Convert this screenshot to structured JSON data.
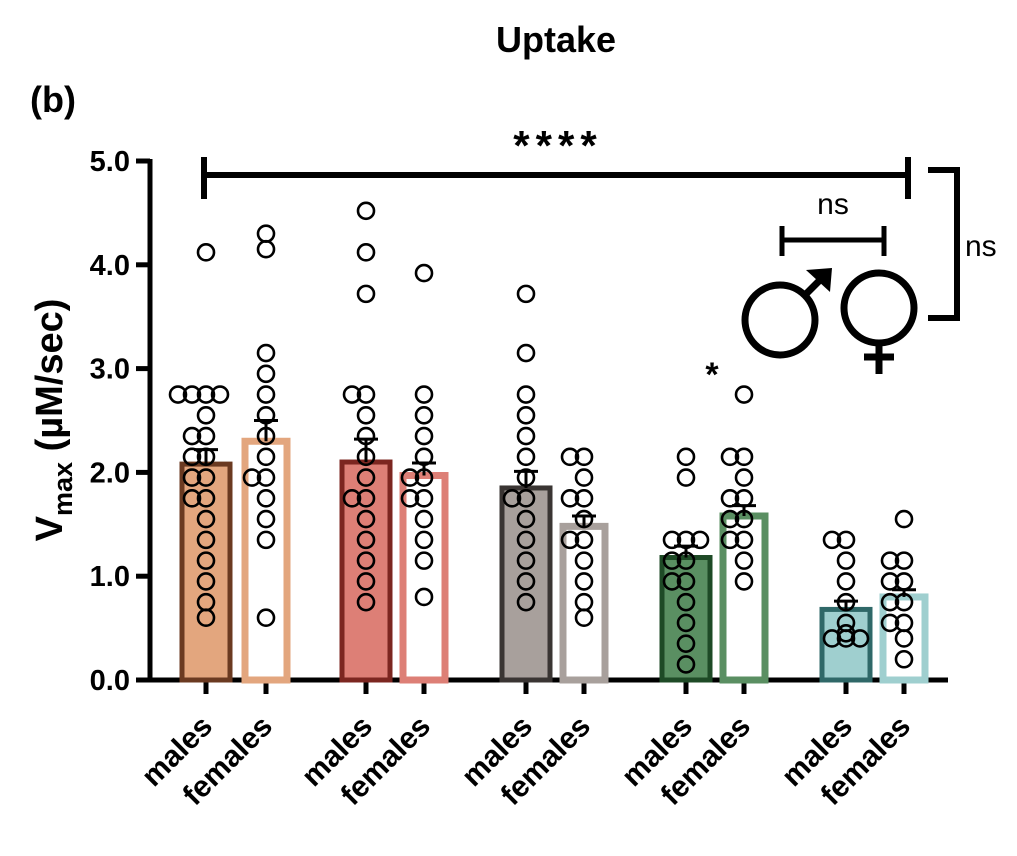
{
  "chart_data": {
    "type": "bar",
    "panel_label": "(b)",
    "title": "Uptake",
    "ylabel_main": "V",
    "ylabel_sub": "max",
    "ylabel_unit": " (µM/sec)",
    "ylim": [
      0,
      5
    ],
    "yticks": [
      "0.0",
      "1.0",
      "2.0",
      "3.0",
      "4.0",
      "5.0"
    ],
    "grid": false,
    "legend": "none",
    "categories": [
      "males",
      "females",
      "males",
      "females",
      "males",
      "females",
      "males",
      "females",
      "males",
      "females"
    ],
    "groups": [
      {
        "colors": {
          "fill": "#e3a67e",
          "edge": "#6b3a21"
        },
        "bars": [
          {
            "label": "males",
            "sex": "m",
            "mean": 2.08,
            "sem": 0.14,
            "points": [
              4.12,
              2.75,
              2.75,
              2.75,
              2.75,
              2.55,
              2.35,
              2.35,
              2.15,
              2.15,
              1.95,
              1.95,
              1.75,
              1.75,
              1.55,
              1.35,
              1.15,
              0.95,
              0.75,
              0.6
            ]
          },
          {
            "label": "females",
            "sex": "f",
            "mean": 2.3,
            "sem": 0.2,
            "points": [
              4.3,
              4.15,
              3.15,
              2.95,
              2.75,
              2.55,
              2.35,
              2.15,
              1.95,
              1.95,
              1.75,
              1.55,
              1.35,
              0.6
            ]
          }
        ]
      },
      {
        "colors": {
          "fill": "#dd7f76",
          "edge": "#7c2620"
        },
        "bars": [
          {
            "label": "males",
            "sex": "m",
            "mean": 2.1,
            "sem": 0.22,
            "points": [
              4.52,
              4.12,
              3.72,
              2.75,
              2.75,
              2.55,
              2.35,
              2.15,
              1.95,
              1.75,
              1.75,
              1.55,
              1.35,
              1.15,
              0.95,
              0.75
            ]
          },
          {
            "label": "females",
            "sex": "f",
            "mean": 1.97,
            "sem": 0.12,
            "points": [
              3.92,
              2.75,
              2.55,
              2.35,
              2.15,
              1.95,
              1.95,
              1.75,
              1.75,
              1.55,
              1.35,
              1.15,
              0.8
            ]
          }
        ]
      },
      {
        "colors": {
          "fill": "#a8a09c",
          "edge": "#3a3533"
        },
        "bars": [
          {
            "label": "males",
            "sex": "m",
            "mean": 1.85,
            "sem": 0.16,
            "points": [
              3.72,
              3.15,
              2.75,
              2.55,
              2.35,
              2.15,
              1.95,
              1.75,
              1.75,
              1.55,
              1.35,
              1.15,
              0.95,
              0.75
            ]
          },
          {
            "label": "females",
            "sex": "f",
            "mean": 1.48,
            "sem": 0.1,
            "points": [
              2.15,
              2.15,
              1.95,
              1.75,
              1.75,
              1.55,
              1.35,
              1.35,
              1.15,
              0.95,
              0.75,
              0.6
            ]
          }
        ]
      },
      {
        "colors": {
          "fill": "#5a8f62",
          "edge": "#1e4a26"
        },
        "bars": [
          {
            "label": "males",
            "sex": "m",
            "mean": 1.18,
            "sem": 0.11,
            "points": [
              2.15,
              1.95,
              1.35,
              1.35,
              1.35,
              1.15,
              1.15,
              0.95,
              0.95,
              0.75,
              0.55,
              0.35,
              0.15
            ]
          },
          {
            "label": "females",
            "sex": "f",
            "mean": 1.58,
            "sem": 0.1,
            "points": [
              2.75,
              2.15,
              2.15,
              1.95,
              1.75,
              1.75,
              1.55,
              1.55,
              1.35,
              1.35,
              1.15,
              0.95
            ]
          }
        ]
      },
      {
        "colors": {
          "fill": "#9fcfcf",
          "edge": "#2f6868"
        },
        "bars": [
          {
            "label": "males",
            "sex": "m",
            "mean": 0.68,
            "sem": 0.08,
            "points": [
              1.35,
              1.35,
              1.15,
              0.95,
              0.75,
              0.55,
              0.45,
              0.4,
              0.4,
              0.4
            ]
          },
          {
            "label": "females",
            "sex": "f",
            "mean": 0.8,
            "sem": 0.07,
            "points": [
              1.55,
              1.15,
              1.15,
              0.95,
              0.95,
              0.75,
              0.75,
              0.55,
              0.55,
              0.4,
              0.2
            ]
          }
        ]
      }
    ],
    "annotations": {
      "overall": "****",
      "sex_comparison": "ns",
      "right_bracket": "ns",
      "group4_females": "*",
      "male_symbol": "♂",
      "female_symbol": "♀"
    }
  }
}
